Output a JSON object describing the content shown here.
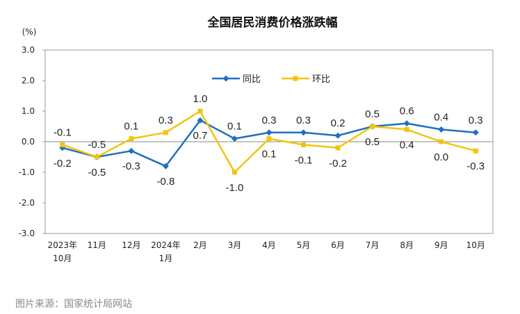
{
  "chart_data": {
    "type": "line",
    "title": "全国居民消费价格涨跌幅",
    "unit": "(%)",
    "categories": [
      [
        "2023年",
        "10月"
      ],
      [
        "11月"
      ],
      [
        "12月"
      ],
      [
        "2024年",
        "1月"
      ],
      [
        "2月"
      ],
      [
        "3月"
      ],
      [
        "4月"
      ],
      [
        "5月"
      ],
      [
        "6月"
      ],
      [
        "7月"
      ],
      [
        "8月"
      ],
      [
        "9月"
      ],
      [
        "10月"
      ]
    ],
    "ylim": [
      -3.0,
      3.0
    ],
    "yticks": [
      3.0,
      2.0,
      1.0,
      0.0,
      -1.0,
      -2.0,
      -3.0
    ],
    "ytick_labels": [
      "3.0",
      "2.0",
      "1.0",
      "0.0",
      "-1.0",
      "-2.0",
      "-3.0"
    ],
    "legend_position": "top-left",
    "series": [
      {
        "name": "同比",
        "color": "#1f6fbf",
        "marker": "diamond",
        "values": [
          -0.2,
          -0.5,
          -0.3,
          -0.8,
          0.7,
          0.1,
          0.3,
          0.3,
          0.2,
          0.5,
          0.6,
          0.4,
          0.3
        ],
        "labels": [
          "-0.2",
          "-0.5",
          "-0.3",
          "-0.8",
          "0.7",
          "0.1",
          "0.3",
          "0.3",
          "0.2",
          "0.5",
          "0.6",
          "0.4",
          "0.3"
        ]
      },
      {
        "name": "环比",
        "color": "#f2c40f",
        "marker": "square",
        "values": [
          -0.1,
          -0.5,
          0.1,
          0.3,
          1.0,
          -1.0,
          0.1,
          -0.1,
          -0.2,
          0.5,
          0.4,
          0.0,
          -0.3
        ],
        "labels": [
          "-0.1",
          "-0.5",
          "0.1",
          "0.3",
          "1.0",
          "-1.0",
          "0.1",
          "-0.1",
          "-0.2",
          "0.5",
          "0.4",
          "0.0",
          "-0.3"
        ]
      }
    ]
  },
  "source_caption": "图片来源：国家统计局网站"
}
